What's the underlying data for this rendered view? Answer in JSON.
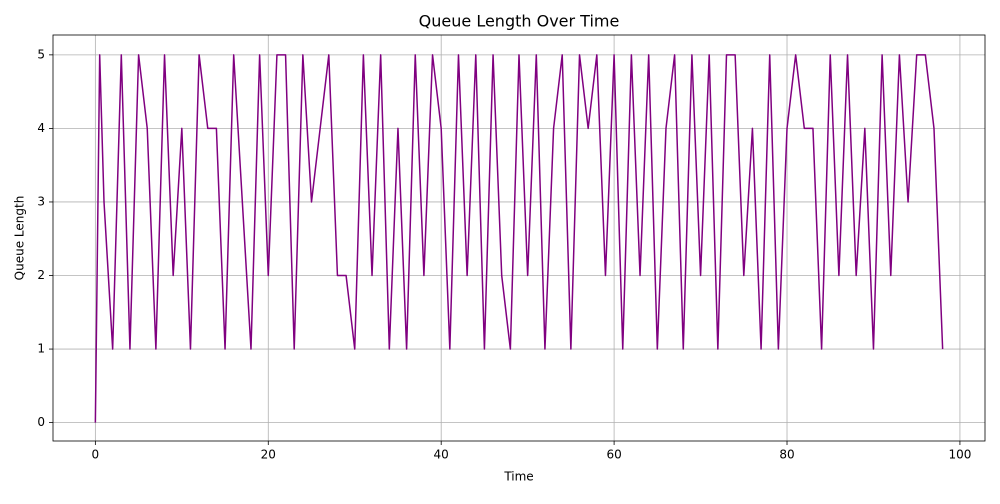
{
  "chart_data": {
    "type": "line",
    "title": "Queue Length Over Time",
    "x_label": "Time",
    "y_label": "Queue Length",
    "x": [
      0,
      0.5,
      1,
      2,
      3,
      4,
      5,
      6,
      7,
      8,
      9,
      10,
      11,
      12,
      13,
      14,
      15,
      16,
      17,
      18,
      19,
      20,
      21,
      22,
      23,
      24,
      25,
      26,
      27,
      28,
      29,
      30,
      31,
      32,
      33,
      34,
      35,
      36,
      37,
      38,
      39,
      40,
      41,
      42,
      43,
      44,
      45,
      46,
      47,
      48,
      49,
      50,
      51,
      52,
      53,
      54,
      55,
      56,
      57,
      58,
      59,
      60,
      61,
      62,
      63,
      64,
      65,
      66,
      67,
      68,
      69,
      70,
      71,
      72,
      73,
      74,
      75,
      76,
      77,
      78,
      79,
      80,
      81,
      82,
      83,
      84,
      85,
      86,
      87,
      88,
      89,
      90,
      91,
      92,
      93,
      94,
      95,
      96,
      97,
      98
    ],
    "series": [
      {
        "name": "Queue Length",
        "color": "purple",
        "values": [
          0,
          5,
          3,
          1,
          5,
          1,
          5,
          4,
          1,
          5,
          2,
          4,
          1,
          5,
          4,
          4,
          1,
          5,
          3,
          1,
          5,
          2,
          5,
          5,
          1,
          5,
          3,
          4,
          5,
          2,
          2,
          1,
          5,
          2,
          5,
          1,
          4,
          1,
          5,
          2,
          5,
          4,
          1,
          5,
          2,
          5,
          1,
          5,
          2,
          1,
          5,
          2,
          5,
          1,
          4,
          5,
          1,
          5,
          4,
          5,
          2,
          5,
          1,
          5,
          2,
          5,
          1,
          4,
          5,
          1,
          5,
          2,
          5,
          1,
          5,
          5,
          2,
          4,
          1,
          5,
          1,
          4,
          5,
          4,
          4,
          1,
          5,
          2,
          5,
          2,
          4,
          1,
          5,
          2,
          5,
          3,
          5,
          5,
          4,
          1
        ]
      }
    ],
    "xlim": [
      -4.9,
      102.9
    ],
    "ylim": [
      -0.25,
      5.27
    ],
    "xticks": [
      0,
      20,
      40,
      60,
      80,
      100
    ],
    "yticks": [
      0,
      1,
      2,
      3,
      4,
      5
    ],
    "grid": true
  }
}
